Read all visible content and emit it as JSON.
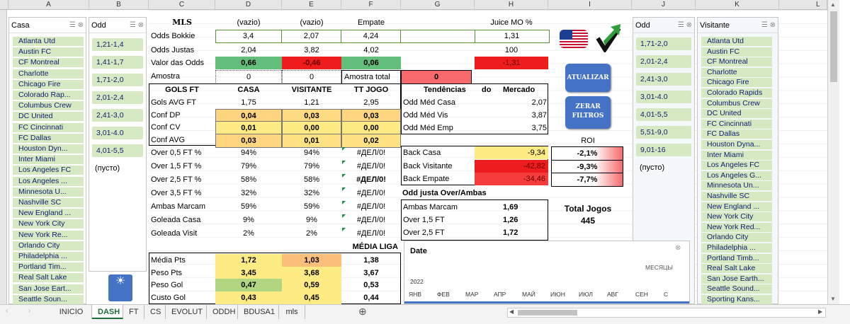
{
  "columns": {
    "A": "A",
    "B": "B",
    "C": "C",
    "D": "D",
    "E": "E",
    "F": "F",
    "G": "G",
    "H": "H",
    "I": "I",
    "J": "J",
    "K": "K",
    "L": "L"
  },
  "slicer_casa": {
    "title": "Casa",
    "items": [
      "Atlanta Utd",
      "Austin FC",
      "CF Montreal",
      "Charlotte",
      "Chicago Fire",
      "Colorado Rap...",
      "Columbus Crew",
      "DC United",
      "FC Cincinnati",
      "FC Dallas",
      "Houston Dyn...",
      "Inter Miami",
      "Los Angeles FC",
      "Los Angeles ...",
      "Minnesota U...",
      "Nashville SC",
      "New England ...",
      "New York City",
      "New York Re...",
      "Orlando City",
      "Philadelphia ...",
      "Portland Tim...",
      "Real Salt Lake",
      "San Jose Eart...",
      "Seattle Soun..."
    ]
  },
  "slicer_odd1": {
    "title": "Odd",
    "items": [
      "1,21-1,4",
      "1,41-1,7",
      "1,71-2,0",
      "2,01-2,4",
      "2,41-3,0",
      "3,01-4.0",
      "4,01-5,5"
    ],
    "empty": "(пусто)"
  },
  "slicer_odd2": {
    "title": "Odd",
    "items": [
      "1,71-2,0",
      "2,01-2,4",
      "2,41-3,0",
      "3,01-4.0",
      "4,01-5,5",
      "5,51-9,0",
      "9,01-16"
    ],
    "empty": "(пусто)"
  },
  "slicer_visitante": {
    "title": "Visitante",
    "items": [
      "Atlanta Utd",
      "Austin FC",
      "CF Montreal",
      "Charlotte",
      "Chicago Fire",
      "Colorado Rapids",
      "Columbus Crew",
      "DC United",
      "FC Cincinnati",
      "FC Dallas",
      "Houston Dyna...",
      "Inter Miami",
      "Los Angeles FC",
      "Los Angeles G...",
      "Minnesota Un...",
      "Nashville SC",
      "New England ...",
      "New York City",
      "New York Red...",
      "Orlando City",
      "Philadelphia ...",
      "Portland Timb...",
      "Real Salt Lake",
      "San Jose Earth...",
      "Seattle Sound...",
      "Sporting Kans..."
    ]
  },
  "header": {
    "league": "MLS",
    "d": "(vazio)",
    "e": "(vazio)",
    "f": "Empate",
    "h": "Juice MO %"
  },
  "odds_bokkie": {
    "label": "Odds Bokkie",
    "d": "3,4",
    "e": "2,07",
    "f": "4,24",
    "h": "1,31"
  },
  "odds_justas": {
    "label": "Odds Justas",
    "d": "2,04",
    "e": "3,82",
    "f": "4,02",
    "h": "100"
  },
  "valor_odds": {
    "label": "Valor das Odds",
    "d": "0,66",
    "e": "-0,46",
    "f": "0,06",
    "h": "-1,31"
  },
  "amostra": {
    "label": "Amostra",
    "d": "0",
    "e": "0",
    "total_label": "Amostra total",
    "total": "0"
  },
  "gols": {
    "headers": [
      "GOLS FT",
      "CASA",
      "VISITANTE",
      "TT JOGO"
    ],
    "rows": [
      [
        "Gols AVG FT",
        "1,75",
        "1,21",
        "2,95"
      ],
      [
        "Conf DP",
        "0,04",
        "0,03",
        "0,03"
      ],
      [
        "Conf CV",
        "0,01",
        "0,00",
        "0,00"
      ],
      [
        "Conf AVG",
        "0,03",
        "0,01",
        "0,02"
      ]
    ]
  },
  "stats": [
    [
      "Over 0,5 FT %",
      "94%",
      "94%",
      "#ДЕЛ/0!"
    ],
    [
      "Over 1,5 FT %",
      "79%",
      "79%",
      "#ДЕЛ/0!"
    ],
    [
      "Over 2,5 FT %",
      "58%",
      "58%",
      "#ДЕЛ/0!"
    ],
    [
      "Over 3,5 FT %",
      "32%",
      "32%",
      "#ДЕЛ/0!"
    ],
    [
      "Ambas Marcam",
      "59%",
      "59%",
      "#ДЕЛ/0!"
    ],
    [
      "Goleada Casa",
      "9%",
      "9%",
      "#ДЕЛ/0!"
    ],
    [
      "Goleada Visit",
      "2%",
      "2%",
      "#ДЕЛ/0!"
    ]
  ],
  "tendencias": {
    "h1": "Tendências",
    "h2": "do",
    "h3": "Mercado",
    "rows": [
      [
        "Odd Méd Casa",
        "2,07"
      ],
      [
        "Odd Méd Vis",
        "3,87"
      ],
      [
        "Odd Méd Emp",
        "3,75"
      ]
    ]
  },
  "back": {
    "roi_label": "ROI",
    "rows": [
      [
        "Back Casa",
        "-9,34",
        "-2,1%"
      ],
      [
        "Back Visitante",
        "-42,82",
        "-9,3%"
      ],
      [
        "Back Empate",
        "-34,46",
        "-7,7%"
      ]
    ]
  },
  "odd_justa": {
    "title": "Odd justa Over/Ambas",
    "rows": [
      [
        "Ambas Marcam",
        "1,69"
      ],
      [
        "Over 1,5 FT",
        "1,26"
      ],
      [
        "Over 2,5 FT",
        "1,72"
      ]
    ]
  },
  "total": {
    "label": "Total Jogos",
    "value": "445"
  },
  "media": {
    "title": "MÉDIA LIGA",
    "rows": [
      [
        "Média Pts",
        "1,72",
        "1,03",
        "1,38"
      ],
      [
        "Peso Pts",
        "3,45",
        "3,68",
        "3,67"
      ],
      [
        "Peso Gol",
        "0,47",
        "0,59",
        "0,53"
      ],
      [
        "Custo Gol",
        "0,43",
        "0,45",
        "0,44"
      ]
    ]
  },
  "buttons": {
    "atualizar": "ATUALIZAR",
    "zerar1": "ZERAR",
    "zerar2": "FILTROS"
  },
  "timeline": {
    "title": "Date",
    "unit": "МЕСЯЦЫ",
    "year": "2022",
    "months": [
      "ЯНВ",
      "ФЕВ",
      "МАР",
      "АПР",
      "МАЙ",
      "ИЮН",
      "ИЮЛ",
      "АВГ",
      "СЕН",
      "С"
    ]
  },
  "tabs": [
    "INICIO",
    "DASH",
    "FT",
    "CS",
    "EVOLUT",
    "ODDH",
    "BDUSA1",
    "mls"
  ],
  "active_tab": "DASH",
  "colors": {
    "green": "#63be7b",
    "red": "#f8696b",
    "yellow": "#ffeb84",
    "orange": "#fcbf7b",
    "slicer_item": "#d6e9c3",
    "button": "#4472c4"
  }
}
